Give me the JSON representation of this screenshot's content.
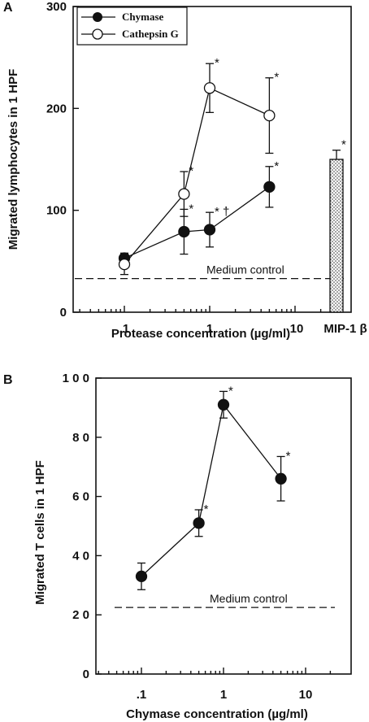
{
  "chart_data": [
    {
      "panel": "A",
      "type": "line",
      "xscale": "log",
      "xlim": [
        0.03,
        20
      ],
      "ylim": [
        0,
        300
      ],
      "xticks": [
        ".1",
        "1",
        "10"
      ],
      "yticks": [
        "0",
        "100",
        "200",
        "300"
      ],
      "xlabel": "Protease concentration (µg/ml)",
      "ylabel": "Migrated lymphocytes in 1 HPF",
      "legend": {
        "placement": "top-left",
        "entries": [
          "Chymase",
          "Cathepsin G"
        ]
      },
      "series": [
        {
          "name": "Chymase",
          "marker": "filled-circle",
          "x": [
            0.1,
            0.5,
            1,
            5
          ],
          "y": [
            53,
            79,
            81,
            123
          ],
          "err": [
            5,
            22,
            17,
            20
          ],
          "marks": [
            "",
            "*",
            "* †",
            "*"
          ]
        },
        {
          "name": "Cathepsin G",
          "marker": "open-circle",
          "x": [
            0.1,
            0.5,
            1,
            5
          ],
          "y": [
            47,
            116,
            220,
            193
          ],
          "err": [
            10,
            22,
            24,
            37
          ],
          "marks": [
            "",
            "*",
            "*",
            "*"
          ]
        }
      ],
      "bar": {
        "label": "MIP-1 β",
        "value": 150,
        "err": 9,
        "mark": "*",
        "fill": "dotted"
      },
      "control": {
        "label": "Medium control",
        "value": 33
      }
    },
    {
      "panel": "B",
      "type": "line",
      "xscale": "log",
      "xlim": [
        0.03,
        20
      ],
      "ylim": [
        0,
        100
      ],
      "xticks": [
        ".1",
        "1",
        "10"
      ],
      "yticks": [
        "0",
        "2 0",
        "4 0",
        "6 0",
        "8 0",
        "1 0 0"
      ],
      "xlabel": "Chymase concentration (µg/ml)",
      "ylabel": "Migrated T cells in 1 HPF",
      "series": [
        {
          "name": "",
          "marker": "filled-circle",
          "x": [
            0.1,
            0.5,
            1,
            5
          ],
          "y": [
            33,
            51,
            91,
            66
          ],
          "err": [
            4.5,
            4.5,
            4.5,
            7.5
          ],
          "marks": [
            "",
            "*",
            "*",
            "*"
          ]
        }
      ],
      "control": {
        "label": "Medium control",
        "value": 22.5
      }
    }
  ]
}
